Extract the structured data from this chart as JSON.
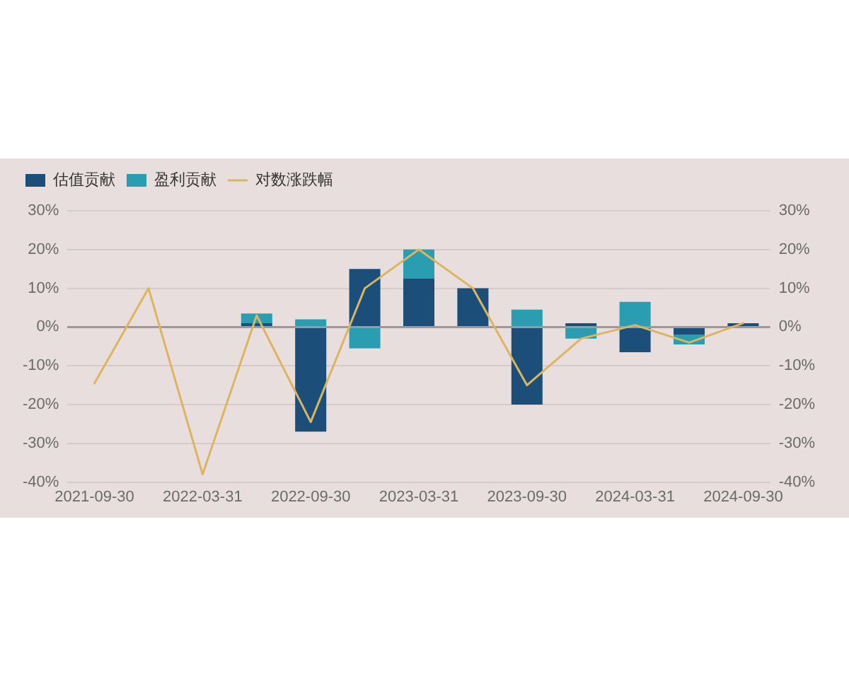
{
  "chart_data": {
    "type": "bar",
    "stacked": true,
    "categories": [
      "2021-09-30",
      null,
      "2022-03-31",
      null,
      "2022-09-30",
      null,
      "2023-03-31",
      null,
      "2023-09-30",
      null,
      "2024-03-31",
      null,
      "2024-09-30"
    ],
    "series": [
      {
        "name": "估值贡献",
        "color": "#1b4f7a",
        "values": [
          null,
          null,
          null,
          1,
          -27,
          15,
          12.5,
          10,
          -20,
          1,
          -6.5,
          -2,
          1
        ]
      },
      {
        "name": "盈利贡献",
        "color": "#2a9db0",
        "values": [
          null,
          null,
          null,
          2.5,
          2,
          -5.5,
          7.5,
          null,
          4.5,
          -3,
          6.5,
          -2.5,
          null
        ]
      },
      {
        "name": "对数涨跌幅",
        "type": "line",
        "color": "#dcb55e",
        "values": [
          -14.5,
          10,
          -38,
          3,
          -24.5,
          10,
          20,
          10,
          -15,
          -3,
          0.5,
          -4,
          1
        ]
      }
    ],
    "ylim": [
      -40,
      30
    ],
    "yticks": [
      {
        "value": -40,
        "label": "-40%"
      },
      {
        "value": -30,
        "label": "-30%"
      },
      {
        "value": -20,
        "label": "-20%"
      },
      {
        "value": -10,
        "label": "-10%"
      },
      {
        "value": 0,
        "label": "0%"
      },
      {
        "value": 10,
        "label": "10%"
      },
      {
        "value": 20,
        "label": "20%"
      },
      {
        "value": 30,
        "label": "30%"
      }
    ],
    "y2lim": [
      -40,
      30
    ],
    "y2ticks": [
      {
        "value": -40,
        "label": "-40%"
      },
      {
        "value": -30,
        "label": "-30%"
      },
      {
        "value": -20,
        "label": "-20%"
      },
      {
        "value": -10,
        "label": "-10%"
      },
      {
        "value": 0,
        "label": "0%"
      },
      {
        "value": 10,
        "label": "10%"
      },
      {
        "value": 20,
        "label": "20%"
      },
      {
        "value": 30,
        "label": "30%"
      }
    ],
    "grid": "y",
    "legend": "top left"
  }
}
